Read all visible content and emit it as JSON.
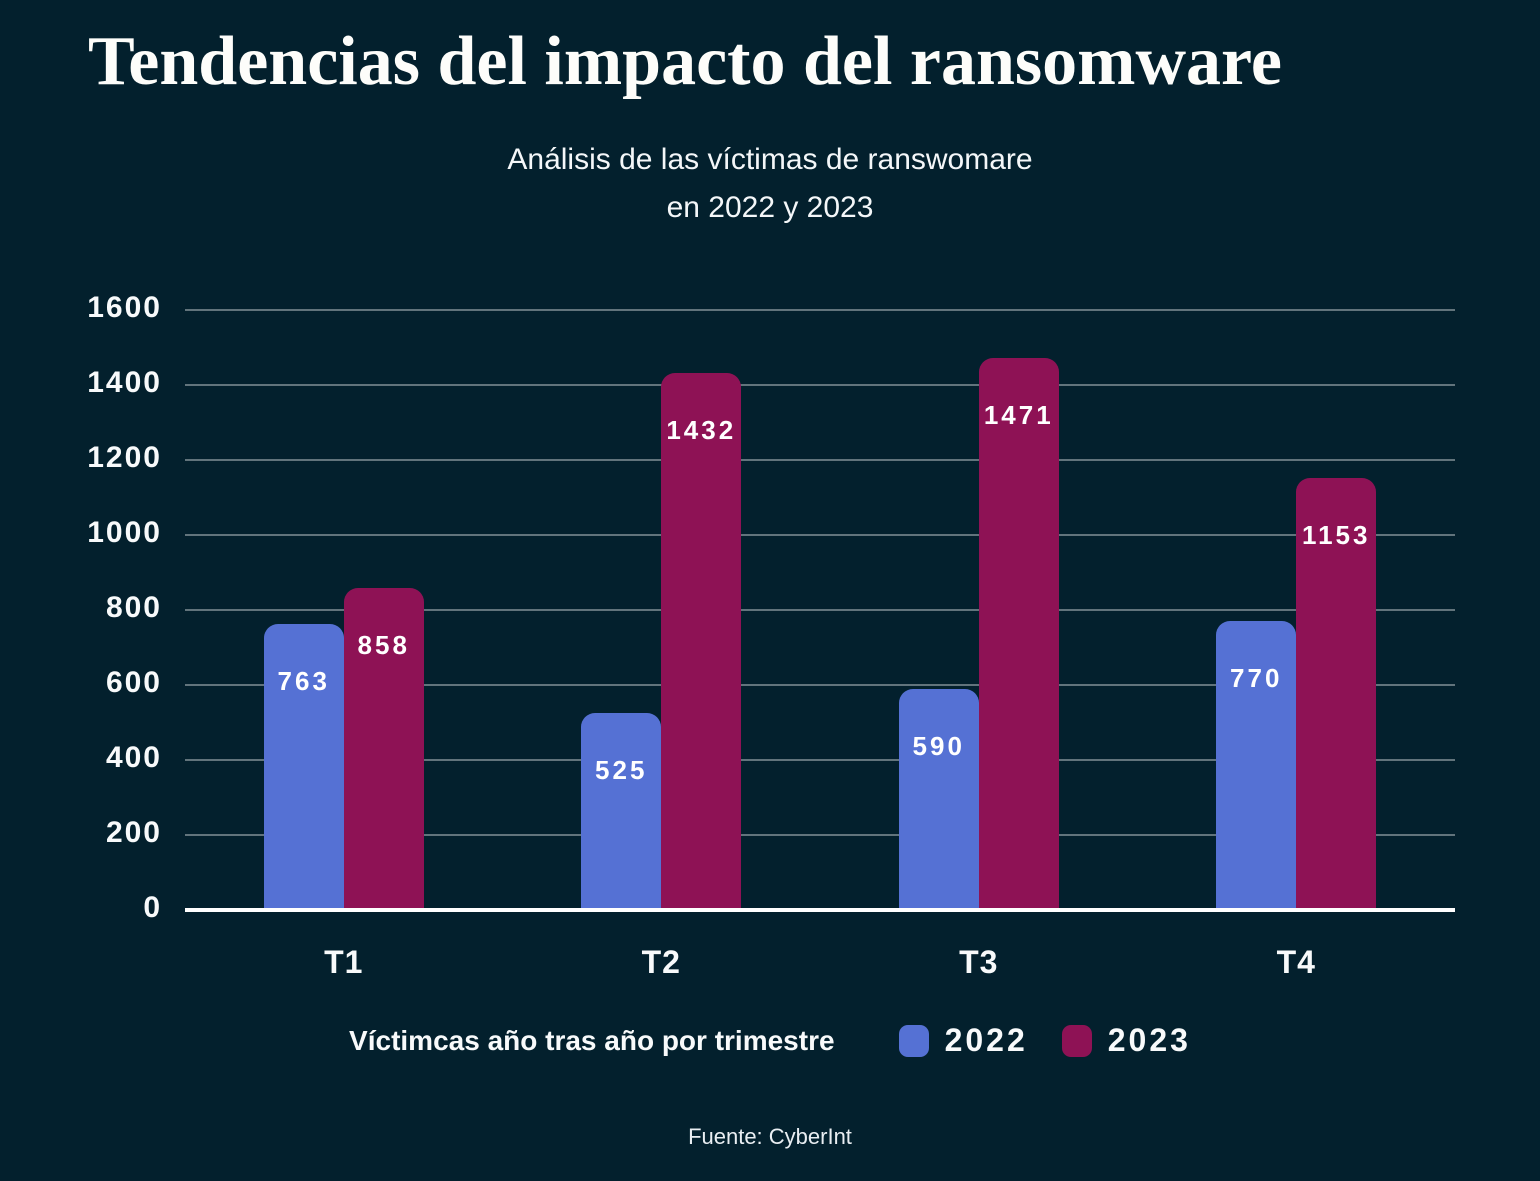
{
  "header": {
    "title": "Tendencias del impacto del ransomware",
    "subtitle_line1": "Análisis de las víctimas de ranswomare",
    "subtitle_line2": "en 2022 y 2023"
  },
  "chart_data": {
    "type": "bar",
    "categories": [
      "T1",
      "T2",
      "T3",
      "T4"
    ],
    "series": [
      {
        "name": "2022",
        "color": "#5571d4",
        "values": [
          763,
          525,
          590,
          770
        ]
      },
      {
        "name": "2023",
        "color": "#8e1255",
        "values": [
          858,
          1432,
          1471,
          1153
        ]
      }
    ],
    "ylim": [
      0,
      1600
    ],
    "ytick_step": 200,
    "grid": true,
    "legend_label": "Víctimcas año tras año por trimestre",
    "legend_position": "bottom",
    "title": "Tendencias del impacto del ransomware",
    "xlabel": "",
    "ylabel": ""
  },
  "colors": {
    "background": "#03202d",
    "bar_2022": "#5571d4",
    "bar_2023": "#8e1255",
    "gridline": "rgba(255,255,255,0.38)",
    "axis": "#ffffff",
    "text": "#ffffff"
  },
  "footer": {
    "source": "Fuente: CyberInt"
  }
}
